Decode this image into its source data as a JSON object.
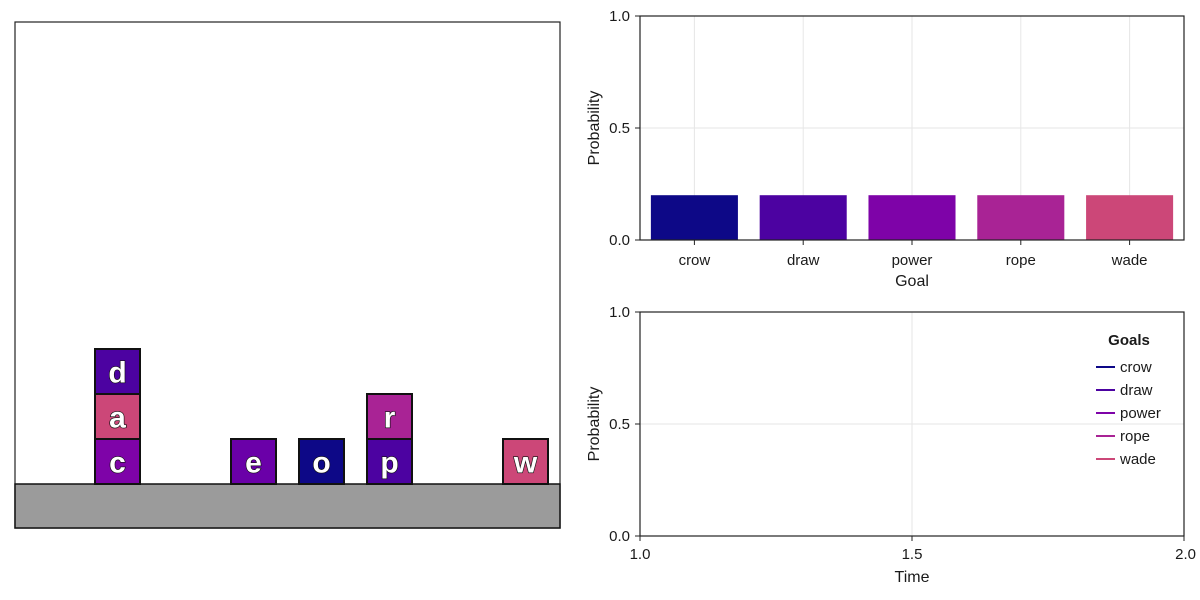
{
  "colors": {
    "crow": "#0d0887",
    "draw": "#4c02a1",
    "power": "#7e03a8",
    "rope": "#a92395",
    "wade": "#cc4778",
    "table": "#9b9b9b",
    "block_border": "#111111",
    "grid": "#e6e6e6"
  },
  "blocks_world": {
    "columns": [
      [
        "c",
        "a",
        "d"
      ],
      [],
      [
        "e"
      ],
      [
        "o"
      ],
      [
        "p",
        "r"
      ],
      [],
      [
        "w"
      ]
    ],
    "block_colors": {
      "c": "#7e03a8",
      "a": "#cc4778",
      "d": "#4c02a1",
      "e": "#6a00a8",
      "o": "#0d0887",
      "p": "#4c02a1",
      "r": "#a92395",
      "w": "#cc4778"
    }
  },
  "chart_data": [
    {
      "type": "bar",
      "categories": [
        "crow",
        "draw",
        "power",
        "rope",
        "wade"
      ],
      "values": [
        0.2,
        0.2,
        0.2,
        0.2,
        0.2
      ],
      "xlabel": "Goal",
      "ylabel": "Probability",
      "ylim": [
        0,
        1
      ],
      "yticks": [
        "0.0",
        "0.5",
        "1.0"
      ],
      "grid": true
    },
    {
      "type": "line",
      "xlabel": "Time",
      "ylabel": "Probability",
      "xlim": [
        1,
        2
      ],
      "ylim": [
        0,
        1
      ],
      "xticks": [
        "1.0",
        "1.5",
        "2.0"
      ],
      "yticks": [
        "0.0",
        "0.5",
        "1.0"
      ],
      "grid": true,
      "legend": {
        "title": "Goals",
        "placement": "top-right"
      },
      "series": [
        {
          "name": "crow",
          "x": [],
          "y": []
        },
        {
          "name": "draw",
          "x": [],
          "y": []
        },
        {
          "name": "power",
          "x": [],
          "y": []
        },
        {
          "name": "rope",
          "x": [],
          "y": []
        },
        {
          "name": "wade",
          "x": [],
          "y": []
        }
      ]
    }
  ]
}
